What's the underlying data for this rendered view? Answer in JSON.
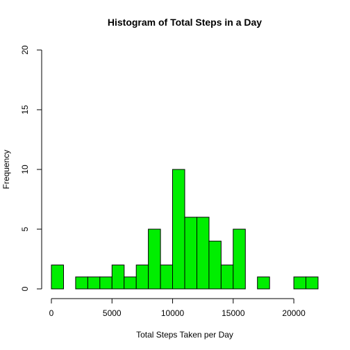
{
  "chart_data": {
    "type": "bar",
    "title": "Histogram of Total Steps in a Day",
    "xlabel": "Total Steps Taken per Day",
    "ylabel": "Frequency",
    "bin_width": 1000,
    "bin_starts": [
      0,
      1000,
      2000,
      3000,
      4000,
      5000,
      6000,
      7000,
      8000,
      9000,
      10000,
      11000,
      12000,
      13000,
      14000,
      15000,
      16000,
      17000,
      18000,
      19000,
      20000,
      21000
    ],
    "values": [
      2,
      0,
      1,
      1,
      1,
      2,
      1,
      2,
      5,
      2,
      10,
      6,
      6,
      4,
      2,
      5,
      0,
      1,
      0,
      0,
      1,
      1
    ],
    "xlim": [
      0,
      22000
    ],
    "ylim": [
      0,
      20
    ],
    "x_ticks": [
      0,
      5000,
      10000,
      15000,
      20000
    ],
    "x_tick_labels": [
      "0",
      "5000",
      "10000",
      "15000",
      "20000"
    ],
    "y_ticks": [
      0,
      5,
      10,
      15,
      20
    ],
    "y_tick_labels": [
      "0",
      "5",
      "10",
      "15",
      "20"
    ],
    "bar_color": "#00ee00",
    "grid": false
  }
}
